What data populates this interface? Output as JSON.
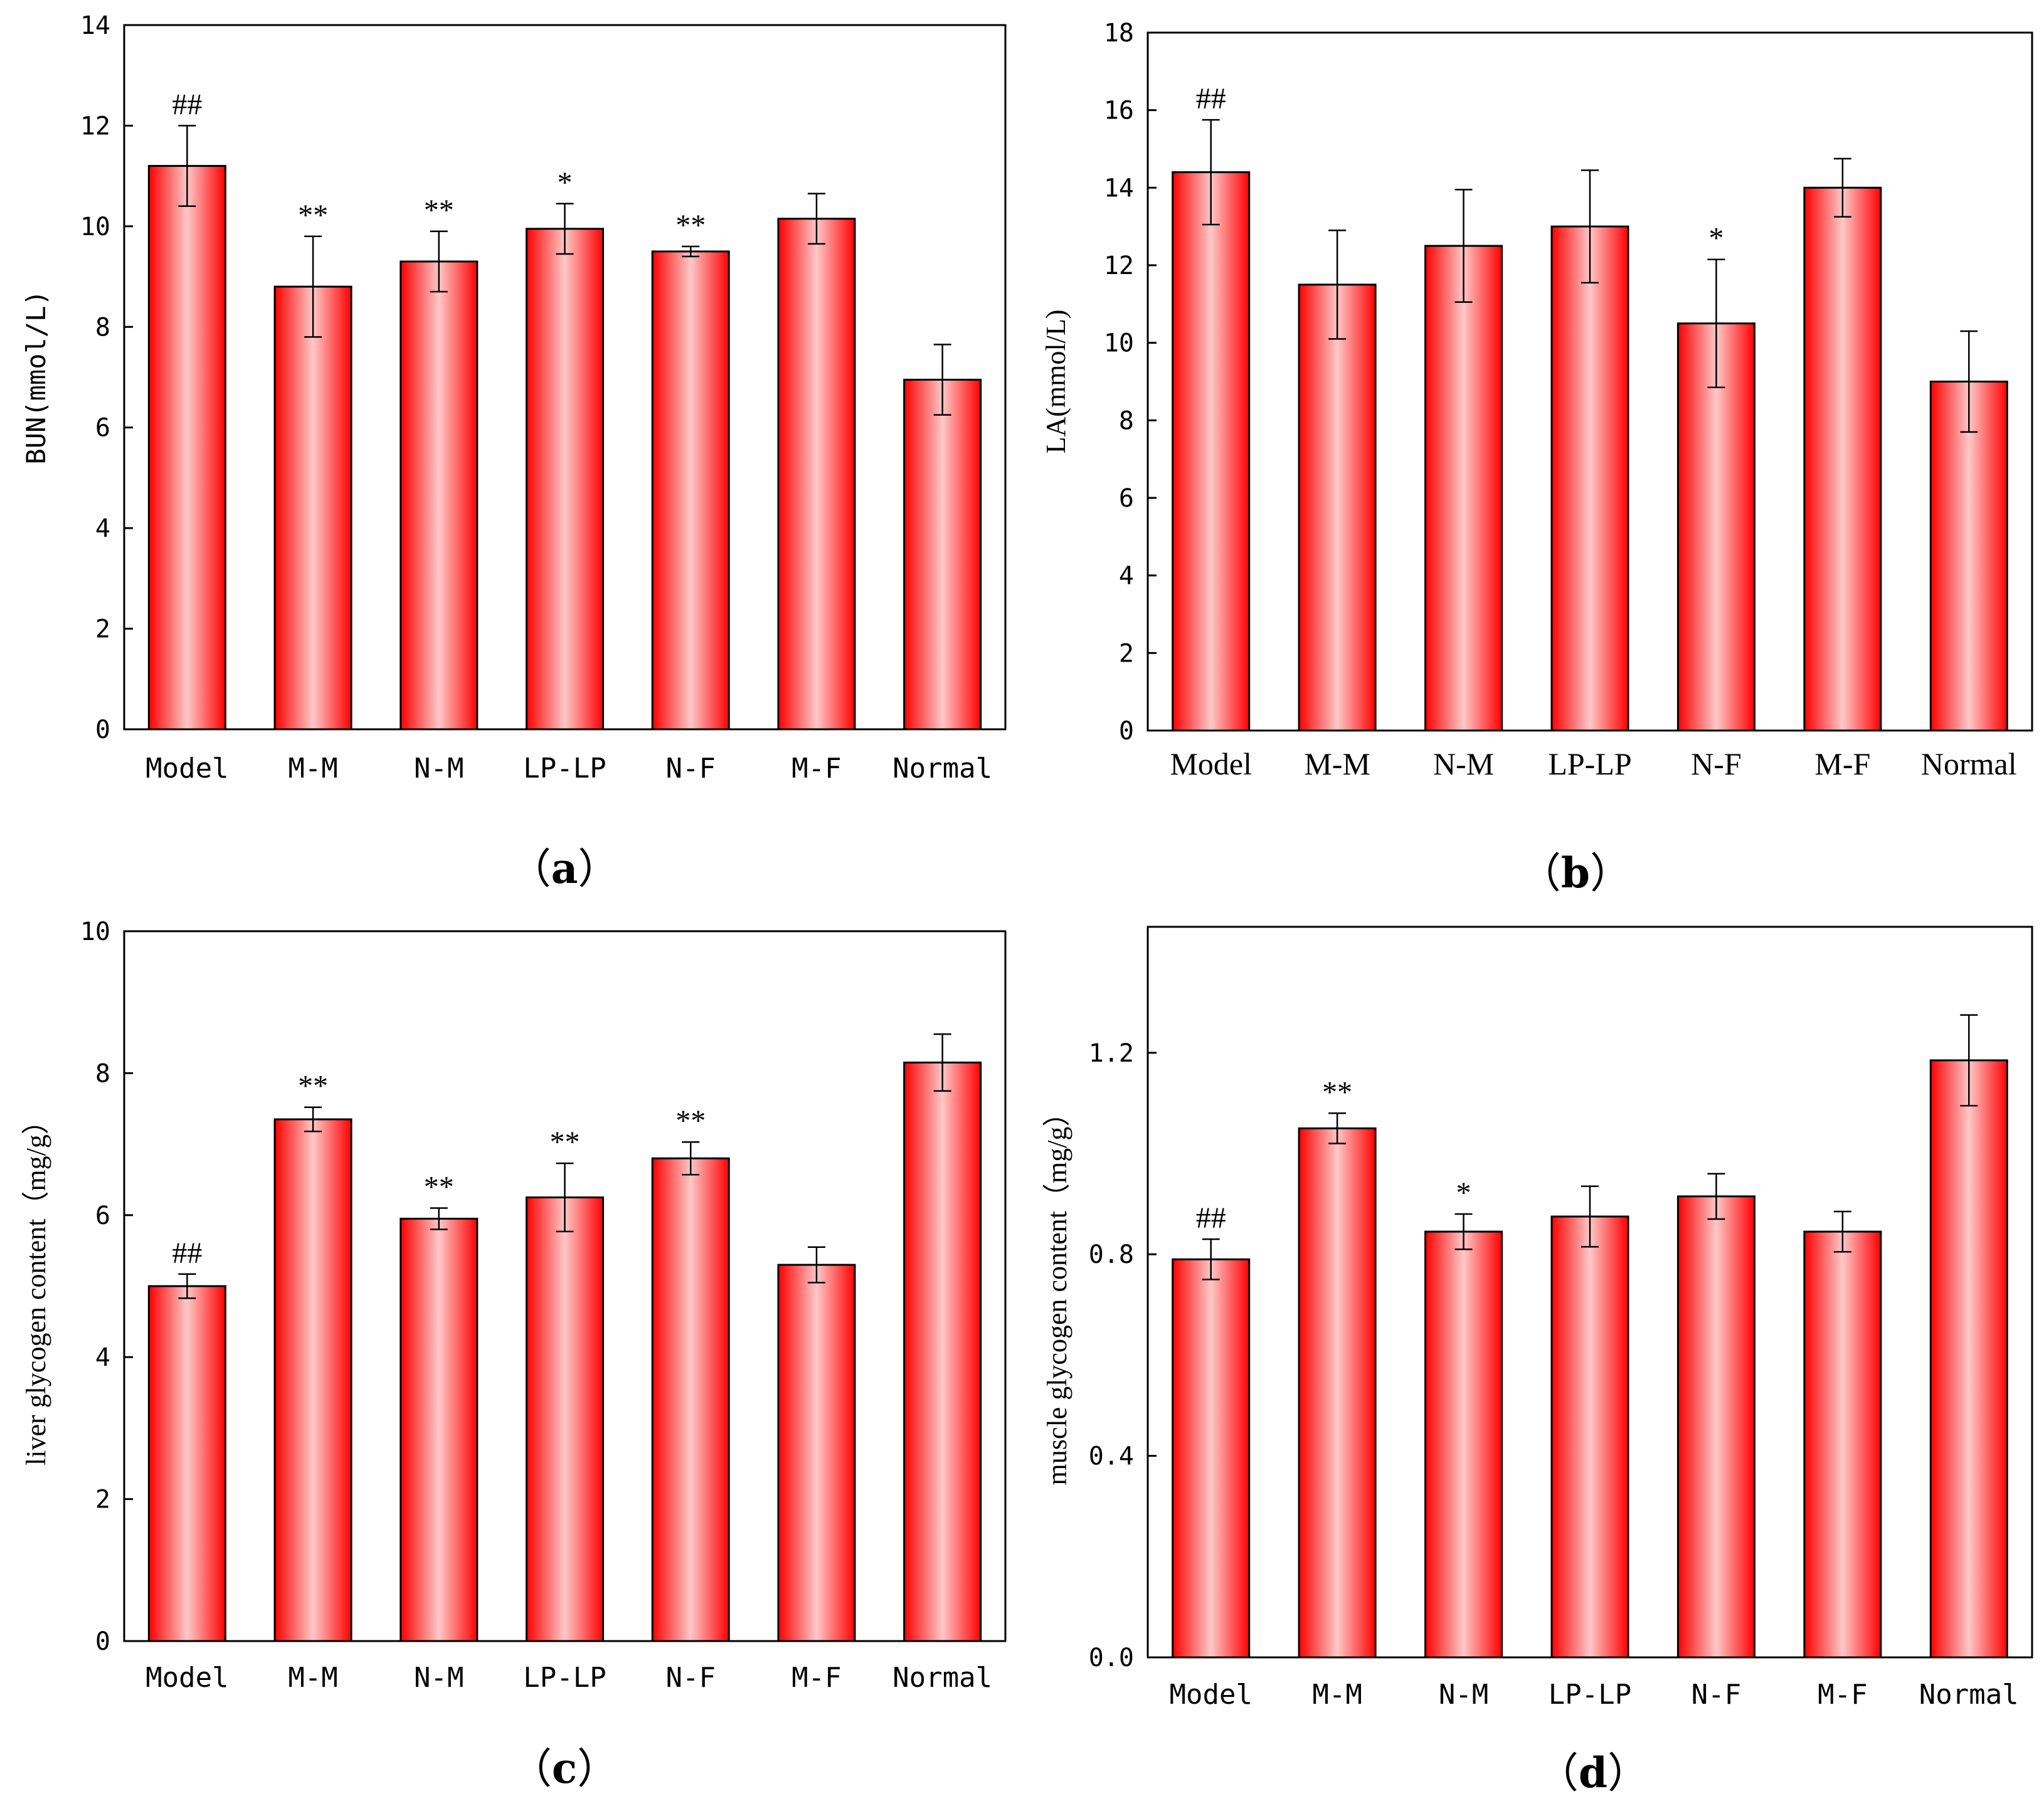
{
  "figure": {
    "panels": [
      {
        "id": "a",
        "label_open": "（",
        "label_letter": "a",
        "label_close": "）"
      },
      {
        "id": "b",
        "label_open": "（",
        "label_letter": "b",
        "label_close": "）"
      },
      {
        "id": "c",
        "label_open": "（",
        "label_letter": "c",
        "label_close": "）"
      },
      {
        "id": "d",
        "label_open": "（",
        "label_letter": "d",
        "label_close": "）"
      }
    ]
  },
  "colors": {
    "bar_edge": "#ff0000",
    "bar_center": "#ffc8c8",
    "bar_outline": "#000000",
    "axis": "#000000"
  },
  "chart_data": [
    {
      "panel": "a",
      "type": "bar",
      "title": "",
      "xlabel": "",
      "ylabel": "BUN(mmol/L)",
      "categories": [
        "Model",
        "M-M",
        "N-M",
        "LP-LP",
        "N-F",
        "M-F",
        "Normal"
      ],
      "values": [
        11.2,
        8.8,
        9.3,
        9.95,
        9.5,
        10.15,
        6.95
      ],
      "errors": [
        0.8,
        1.0,
        0.6,
        0.5,
        0.1,
        0.5,
        0.7
      ],
      "significance": [
        "##",
        "**",
        "**",
        "*",
        "**",
        "",
        ""
      ],
      "ylim": [
        0,
        14
      ],
      "yticks": [
        0,
        2,
        4,
        6,
        8,
        10,
        12,
        14
      ],
      "ytick_labels": [
        "0",
        "2",
        "4",
        "6",
        "8",
        "10",
        "12",
        "14"
      ],
      "grid": false
    },
    {
      "panel": "b",
      "type": "bar",
      "title": "",
      "xlabel": "",
      "ylabel": "LA(mmol/L)",
      "categories": [
        "Model",
        "M-M",
        "N-M",
        "LP-LP",
        "N-F",
        "M-F",
        "Normal"
      ],
      "values": [
        14.4,
        11.5,
        12.5,
        13.0,
        10.5,
        14.0,
        9.0
      ],
      "errors": [
        1.35,
        1.4,
        1.45,
        1.45,
        1.65,
        0.75,
        1.3
      ],
      "significance": [
        "##",
        "",
        "",
        "",
        "*",
        "",
        ""
      ],
      "ylim": [
        0,
        18
      ],
      "yticks": [
        0,
        2,
        4,
        6,
        8,
        10,
        12,
        14,
        16,
        18
      ],
      "ytick_labels": [
        "0",
        "2",
        "4",
        "6",
        "8",
        "10",
        "12",
        "14",
        "16",
        "18"
      ],
      "grid": false
    },
    {
      "panel": "c",
      "type": "bar",
      "title": "",
      "xlabel": "",
      "ylabel": "liver glycogen content（mg/g）",
      "categories": [
        "Model",
        "M-M",
        "N-M",
        "LP-LP",
        "N-F",
        "M-F",
        "Normal"
      ],
      "values": [
        5.0,
        7.35,
        5.95,
        6.25,
        6.8,
        5.3,
        8.15
      ],
      "errors": [
        0.17,
        0.17,
        0.15,
        0.48,
        0.23,
        0.25,
        0.4
      ],
      "significance": [
        "##",
        "**",
        "**",
        "**",
        "**",
        "",
        ""
      ],
      "ylim": [
        0,
        10
      ],
      "yticks": [
        0,
        2,
        4,
        6,
        8,
        10
      ],
      "ytick_labels": [
        "0",
        "2",
        "4",
        "6",
        "8",
        "10"
      ],
      "grid": false
    },
    {
      "panel": "d",
      "type": "bar",
      "title": "",
      "xlabel": "",
      "ylabel": "muscle glycogen content（mg/g）",
      "categories": [
        "Model",
        "M-M",
        "N-M",
        "LP-LP",
        "N-F",
        "M-F",
        "Normal"
      ],
      "values": [
        0.79,
        1.05,
        0.845,
        0.875,
        0.915,
        0.845,
        1.185
      ],
      "errors": [
        0.04,
        0.03,
        0.035,
        0.06,
        0.045,
        0.04,
        0.09
      ],
      "significance": [
        "##",
        "**",
        "*",
        "",
        "",
        "",
        ""
      ],
      "ylim": [
        0,
        1.45
      ],
      "yticks": [
        0,
        0.4,
        0.8,
        1.2
      ],
      "ytick_labels": [
        "0.0",
        "0.4",
        "0.8",
        "1.2"
      ],
      "grid": false
    }
  ]
}
